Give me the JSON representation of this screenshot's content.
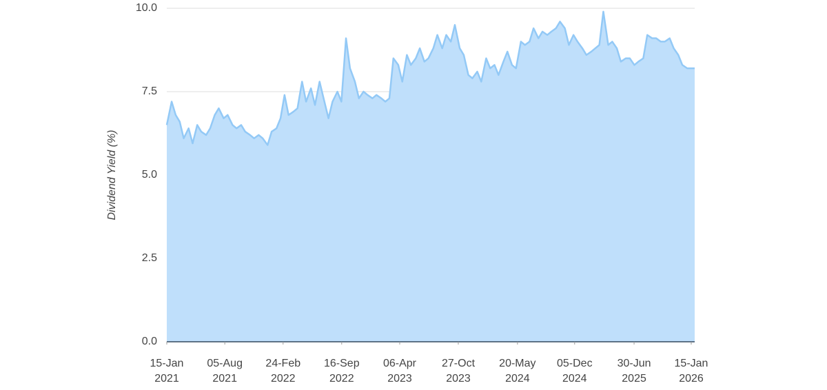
{
  "chart_data": {
    "type": "area",
    "y_label": "Dividend Yield (%)",
    "color": "#bfdffb",
    "line_color": "#93c9f6",
    "ylim": [
      0,
      10
    ],
    "yticks": [
      {
        "value": 0,
        "label": "0.0"
      },
      {
        "value": 2.5,
        "label": "2.5"
      },
      {
        "value": 5,
        "label": "5.0"
      },
      {
        "value": 7.5,
        "label": "7.5"
      },
      {
        "value": 10,
        "label": "10.0"
      }
    ],
    "xlim": [
      "2021-01-15",
      "2026-01-27"
    ],
    "xticks": [
      {
        "value": "2021-01-15",
        "label": "15-Jan\n2021"
      },
      {
        "value": "2021-08-05",
        "label": "05-Aug\n2021"
      },
      {
        "value": "2022-02-24",
        "label": "24-Feb\n2022"
      },
      {
        "value": "2022-09-16",
        "label": "16-Sep\n2022"
      },
      {
        "value": "2023-04-06",
        "label": "06-Apr\n2023"
      },
      {
        "value": "2023-10-27",
        "label": "27-Oct\n2023"
      },
      {
        "value": "2024-05-20",
        "label": "20-May\n2024"
      },
      {
        "value": "2024-12-05",
        "label": "05-Dec\n2024"
      },
      {
        "value": "2025-06-30",
        "label": "30-Jun\n2025"
      },
      {
        "value": "2026-01-15",
        "label": "15-Jan\n2026"
      }
    ],
    "grid": true,
    "x": [
      "2021-01-15",
      "2021-02-01",
      "2021-02-15",
      "2021-03-01",
      "2021-03-15",
      "2021-04-01",
      "2021-04-15",
      "2021-05-01",
      "2021-05-15",
      "2021-06-01",
      "2021-06-15",
      "2021-07-01",
      "2021-07-15",
      "2021-08-01",
      "2021-08-15",
      "2021-09-01",
      "2021-09-15",
      "2021-10-01",
      "2021-10-15",
      "2021-11-01",
      "2021-11-15",
      "2021-12-01",
      "2021-12-15",
      "2022-01-01",
      "2022-01-15",
      "2022-02-01",
      "2022-02-15",
      "2022-03-01",
      "2022-03-15",
      "2022-04-01",
      "2022-04-15",
      "2022-05-01",
      "2022-05-15",
      "2022-06-01",
      "2022-06-15",
      "2022-07-01",
      "2022-07-15",
      "2022-08-01",
      "2022-08-15",
      "2022-09-01",
      "2022-09-15",
      "2022-10-01",
      "2022-10-15",
      "2022-11-01",
      "2022-11-15",
      "2022-12-01",
      "2022-12-15",
      "2023-01-01",
      "2023-01-15",
      "2023-02-01",
      "2023-02-15",
      "2023-03-01",
      "2023-03-15",
      "2023-04-01",
      "2023-04-15",
      "2023-05-01",
      "2023-05-15",
      "2023-06-01",
      "2023-06-15",
      "2023-07-01",
      "2023-07-15",
      "2023-08-01",
      "2023-08-15",
      "2023-09-01",
      "2023-09-15",
      "2023-10-01",
      "2023-10-15",
      "2023-11-01",
      "2023-11-15",
      "2023-12-01",
      "2023-12-15",
      "2024-01-01",
      "2024-01-15",
      "2024-02-01",
      "2024-02-15",
      "2024-03-01",
      "2024-03-15",
      "2024-04-01",
      "2024-04-15",
      "2024-05-01",
      "2024-05-15",
      "2024-06-01",
      "2024-06-15",
      "2024-07-01",
      "2024-07-15",
      "2024-08-01",
      "2024-08-15",
      "2024-09-01",
      "2024-09-15",
      "2024-10-01",
      "2024-10-15",
      "2024-11-01",
      "2024-11-15",
      "2024-12-01",
      "2024-12-15",
      "2025-01-01",
      "2025-01-15",
      "2025-02-01",
      "2025-02-15",
      "2025-03-01",
      "2025-03-15",
      "2025-04-01",
      "2025-04-15",
      "2025-05-01",
      "2025-05-15",
      "2025-06-01",
      "2025-06-15",
      "2025-07-01",
      "2025-07-15",
      "2025-08-01",
      "2025-08-15",
      "2025-09-01",
      "2025-09-15",
      "2025-10-01",
      "2025-10-15",
      "2025-11-01",
      "2025-11-15",
      "2025-12-01",
      "2025-12-15",
      "2026-01-01",
      "2026-01-15",
      "2026-01-27"
    ],
    "values": [
      6.5,
      7.2,
      6.8,
      6.6,
      6.1,
      6.4,
      5.95,
      6.5,
      6.3,
      6.2,
      6.4,
      6.8,
      7.0,
      6.7,
      6.8,
      6.5,
      6.4,
      6.5,
      6.3,
      6.2,
      6.1,
      6.2,
      6.1,
      5.9,
      6.3,
      6.4,
      6.7,
      7.4,
      6.8,
      6.9,
      7.0,
      7.8,
      7.2,
      7.6,
      7.1,
      7.8,
      7.3,
      6.7,
      7.2,
      7.5,
      7.2,
      9.1,
      8.2,
      7.8,
      7.3,
      7.5,
      7.4,
      7.3,
      7.4,
      7.3,
      7.2,
      7.3,
      8.5,
      8.3,
      7.8,
      8.6,
      8.3,
      8.5,
      8.8,
      8.4,
      8.5,
      8.8,
      9.2,
      8.8,
      9.2,
      9.0,
      9.5,
      8.8,
      8.6,
      8.0,
      7.9,
      8.1,
      7.8,
      8.5,
      8.2,
      8.3,
      8.0,
      8.4,
      8.7,
      8.3,
      8.2,
      9.0,
      8.9,
      9.0,
      9.4,
      9.1,
      9.3,
      9.2,
      9.3,
      9.4,
      9.6,
      9.4,
      8.9,
      9.2,
      9.0,
      8.8,
      8.6,
      8.7,
      8.8,
      8.9,
      9.9,
      8.9,
      9.0,
      8.8,
      8.4,
      8.5,
      8.5,
      8.3,
      8.4,
      8.5,
      9.2,
      9.1,
      9.1,
      9.0,
      9.0,
      9.1,
      8.8,
      8.6,
      8.3,
      8.2,
      8.2,
      8.2
    ]
  }
}
